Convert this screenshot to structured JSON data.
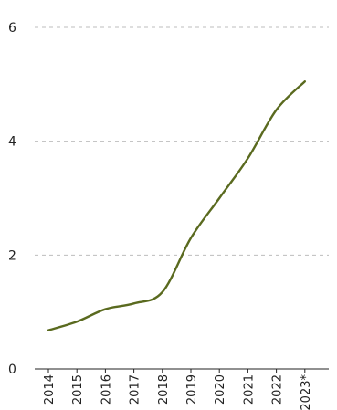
{
  "chart_data": {
    "type": "line",
    "title": "",
    "xlabel": "",
    "ylabel": "",
    "x": [
      "2014",
      "2015",
      "2016",
      "2017",
      "2018",
      "2019",
      "2020",
      "2021",
      "2022",
      "2023*"
    ],
    "series": [
      {
        "values": [
          0.68,
          0.83,
          1.05,
          1.15,
          1.35,
          2.3,
          3.0,
          3.7,
          4.55,
          5.05
        ],
        "color": "#5a6a1f"
      }
    ],
    "ylim": [
      0,
      6
    ],
    "yticks": [
      0,
      2,
      4,
      6
    ],
    "grid": true,
    "legend": "none"
  }
}
